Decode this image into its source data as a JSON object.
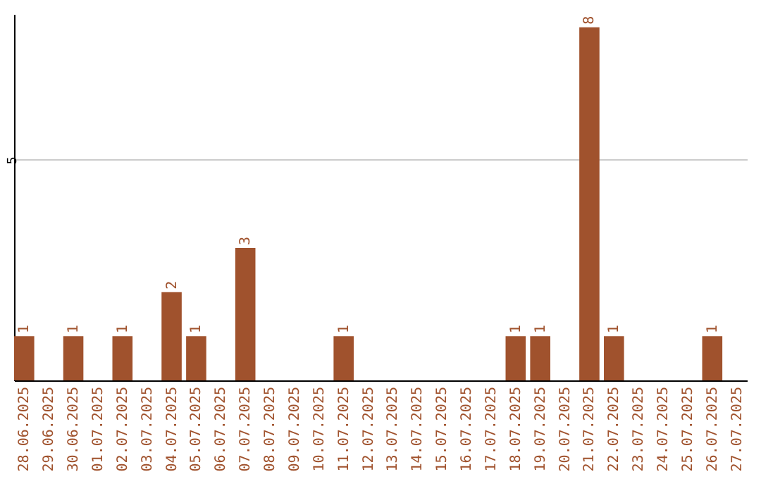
{
  "chart_data": {
    "type": "bar",
    "categories": [
      "28.06.2025",
      "29.06.2025",
      "30.06.2025",
      "01.07.2025",
      "02.07.2025",
      "03.07.2025",
      "04.07.2025",
      "05.07.2025",
      "06.07.2025",
      "07.07.2025",
      "08.07.2025",
      "09.07.2025",
      "10.07.2025",
      "11.07.2025",
      "12.07.2025",
      "13.07.2025",
      "14.07.2025",
      "15.07.2025",
      "16.07.2025",
      "17.07.2025",
      "18.07.2025",
      "19.07.2025",
      "20.07.2025",
      "21.07.2025",
      "22.07.2025",
      "23.07.2025",
      "24.07.2025",
      "25.07.2025",
      "26.07.2025",
      "27.07.2025"
    ],
    "values": [
      1,
      0,
      1,
      0,
      1,
      0,
      2,
      1,
      0,
      3,
      0,
      0,
      0,
      1,
      0,
      0,
      0,
      0,
      0,
      0,
      1,
      1,
      0,
      8,
      1,
      0,
      0,
      0,
      1,
      0
    ],
    "value_labels": [
      "1",
      null,
      "1",
      null,
      "1",
      null,
      "2",
      "1",
      null,
      "3",
      null,
      null,
      null,
      "1",
      null,
      null,
      null,
      null,
      null,
      null,
      "1",
      "1",
      null,
      "8",
      "1",
      null,
      null,
      null,
      "1",
      null
    ],
    "color": "#a0522d",
    "ylim": [
      0,
      8.3
    ],
    "yticks": [
      5
    ],
    "grid": "y"
  }
}
